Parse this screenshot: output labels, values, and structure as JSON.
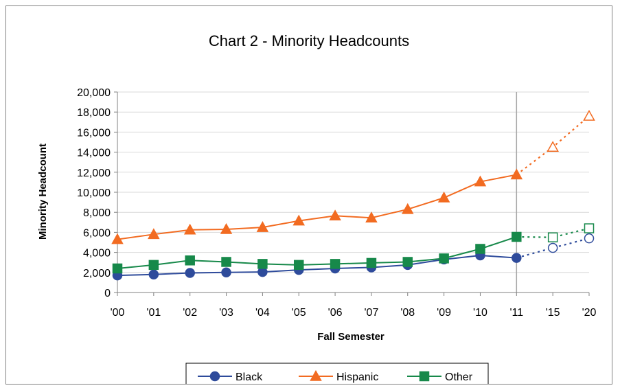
{
  "chart_data": {
    "type": "line",
    "title": "Chart 2 - Minority Headcounts",
    "xlabel": "Fall Semester",
    "ylabel": "Minority Headcount",
    "categories": [
      "'00",
      "'01",
      "'02",
      "'03",
      "'04",
      "'05",
      "'06",
      "'07",
      "'08",
      "'09",
      "'10",
      "'11",
      "'15",
      "'20"
    ],
    "ylim": [
      0,
      20000
    ],
    "yticks": [
      0,
      2000,
      4000,
      6000,
      8000,
      10000,
      12000,
      14000,
      16000,
      18000,
      20000
    ],
    "ytick_labels": [
      "0",
      "2,000",
      "4,000",
      "6,000",
      "8,000",
      "10,000",
      "12,000",
      "14,000",
      "16,000",
      "18,000",
      "20,000"
    ],
    "grid": true,
    "legend_position": "bottom",
    "reference_line_category": "'11",
    "projection_categories": [
      "'15",
      "'20"
    ],
    "series": [
      {
        "name": "Black",
        "marker": "circle",
        "color": "#2E4B9B",
        "values": [
          1700,
          1800,
          1950,
          2000,
          2050,
          2250,
          2400,
          2500,
          2750,
          3300,
          3700,
          3450,
          4450,
          5400
        ]
      },
      {
        "name": "Hispanic",
        "marker": "triangle",
        "color": "#F26B21",
        "values": [
          5300,
          5800,
          6250,
          6300,
          6500,
          7150,
          7650,
          7450,
          8300,
          9450,
          11050,
          11750,
          14500,
          17600
        ]
      },
      {
        "name": "Other",
        "marker": "square",
        "color": "#17894A",
        "values": [
          2400,
          2750,
          3200,
          3050,
          2850,
          2750,
          2850,
          2950,
          3050,
          3400,
          4350,
          5550,
          5500,
          6400
        ]
      }
    ]
  }
}
